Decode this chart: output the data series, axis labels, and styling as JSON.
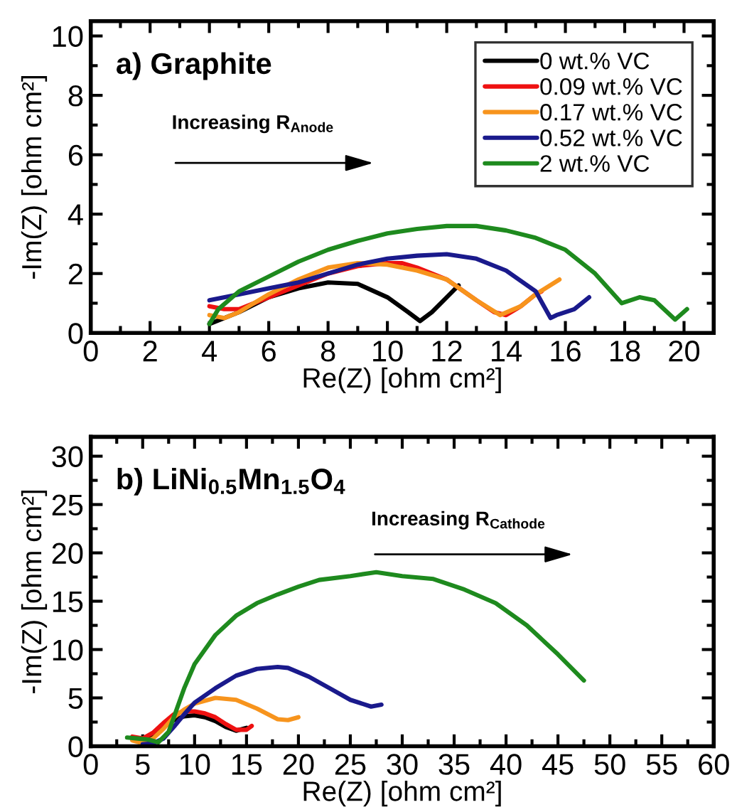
{
  "chart_data": [
    {
      "type": "line",
      "title": "a) Graphite",
      "xlabel": "Re(Z) [ohm cm²]",
      "ylabel": "-Im(Z) [ohm cm²]",
      "annotations": [
        "Increasing R$_{Anode}$"
      ],
      "xlim": [
        0,
        21
      ],
      "ylim": [
        0,
        10.5
      ],
      "xticks": [
        0,
        2,
        4,
        6,
        8,
        10,
        12,
        14,
        16,
        18,
        20
      ],
      "yticks": [
        0,
        2,
        4,
        6,
        8,
        10
      ],
      "grid": false,
      "legend": "top right",
      "line_style": "solid",
      "marker": "none",
      "series": [
        {
          "name": "0 wt.% VC",
          "color": "#000000",
          "x": [
            4,
            5,
            6,
            7,
            8,
            9,
            10,
            10.7,
            11.1,
            11.5,
            12,
            12.4
          ],
          "values": [
            0.3,
            0.7,
            1.2,
            1.5,
            1.7,
            1.65,
            1.2,
            0.7,
            0.4,
            0.7,
            1.2,
            1.6
          ]
        },
        {
          "name": "0.09 wt.% VC",
          "color": "#ee1111",
          "x": [
            4,
            4.5,
            5,
            6,
            7,
            8,
            9,
            10,
            10.5,
            11,
            12,
            13,
            13.6,
            14,
            14.5,
            15,
            15.2
          ],
          "values": [
            0.9,
            0.8,
            0.8,
            1.2,
            1.6,
            2.0,
            2.25,
            2.35,
            2.35,
            2.2,
            1.8,
            1.1,
            0.7,
            0.6,
            0.9,
            1.3,
            1.4
          ]
        },
        {
          "name": "0.17 wt.% VC",
          "color": "#f7941d",
          "x": [
            4,
            4.5,
            5,
            6,
            7,
            8,
            9,
            10,
            11,
            12,
            13,
            13.8,
            14.5,
            15,
            15.8
          ],
          "values": [
            0.6,
            0.5,
            0.7,
            1.3,
            1.8,
            2.2,
            2.35,
            2.3,
            2.1,
            1.8,
            1.1,
            0.6,
            0.9,
            1.3,
            1.8
          ]
        },
        {
          "name": "0.52 wt.% VC",
          "color": "#1a1a8c",
          "x": [
            4,
            5,
            6,
            7,
            8,
            9,
            10,
            11,
            12,
            13,
            14,
            15,
            15.5,
            15.7,
            16.3,
            16.8
          ],
          "values": [
            1.1,
            1.3,
            1.5,
            1.7,
            2.0,
            2.3,
            2.5,
            2.6,
            2.65,
            2.5,
            2.1,
            1.4,
            0.5,
            0.6,
            0.8,
            1.2
          ]
        },
        {
          "name": "2 wt.% VC",
          "color": "#1e8a1e",
          "x": [
            4,
            4.3,
            5,
            6,
            7,
            8,
            9,
            10,
            11,
            12,
            13,
            14,
            15,
            16,
            17,
            17.9,
            18.5,
            19,
            19.7,
            20.1
          ],
          "values": [
            0.3,
            0.8,
            1.4,
            1.9,
            2.4,
            2.8,
            3.1,
            3.35,
            3.5,
            3.6,
            3.6,
            3.45,
            3.2,
            2.8,
            2.0,
            1.0,
            1.2,
            1.1,
            0.45,
            0.8
          ]
        }
      ]
    },
    {
      "type": "line",
      "title": "b) LiNi$_{0.5}$Mn$_{1.5}$O$_{4}$",
      "xlabel": "Re(Z) [ohm cm²]",
      "ylabel": "-Im(Z) [ohm cm²]",
      "annotations": [
        "Increasing R$_{Cathode}$"
      ],
      "xlim": [
        0,
        60
      ],
      "ylim": [
        0,
        32
      ],
      "xticks": [
        0,
        5,
        10,
        15,
        20,
        25,
        30,
        35,
        40,
        45,
        50,
        55,
        60
      ],
      "yticks": [
        0,
        5,
        10,
        15,
        20,
        25,
        30
      ],
      "grid": false,
      "legend": false,
      "line_style": "solid",
      "marker": "none",
      "series": [
        {
          "color": "#000000",
          "x": [
            4,
            5,
            6,
            7,
            8,
            9,
            10,
            11,
            12,
            13,
            14,
            15
          ],
          "values": [
            0.8,
            0.6,
            1.1,
            2,
            2.7,
            3.1,
            3.2,
            3,
            2.6,
            2,
            1.6,
            1.9
          ]
        },
        {
          "color": "#ee1111",
          "x": [
            4,
            5,
            6,
            7,
            8,
            9,
            10,
            11,
            12,
            13,
            14,
            15,
            15.5
          ],
          "values": [
            1,
            0.8,
            1.4,
            2.4,
            3.3,
            3.6,
            3.6,
            3.4,
            3,
            2.3,
            1.7,
            1.7,
            2.1
          ]
        },
        {
          "color": "#f7941d",
          "x": [
            4,
            5,
            6,
            7,
            8,
            9,
            10,
            12,
            14,
            16,
            18,
            19,
            20
          ],
          "values": [
            0.6,
            0.3,
            0.8,
            1.8,
            3,
            3.8,
            4.4,
            5,
            4.8,
            3.9,
            2.8,
            2.7,
            3
          ]
        },
        {
          "color": "#1a1a8c",
          "x": [
            5,
            6,
            7,
            8,
            9,
            10,
            12,
            14,
            16,
            18,
            19,
            21,
            23,
            25,
            27,
            28
          ],
          "values": [
            0.2,
            0.3,
            0.8,
            2,
            3.3,
            4.5,
            6,
            7.3,
            8,
            8.2,
            8.1,
            7.2,
            6,
            4.8,
            4.1,
            4.3
          ]
        },
        {
          "color": "#1e8a1e",
          "x": [
            3.5,
            4.5,
            5.5,
            6.5,
            7.5,
            8,
            9,
            10,
            11,
            12,
            14,
            16,
            18,
            20,
            22,
            25,
            27.5,
            30,
            33,
            36,
            39,
            42,
            45,
            47.5
          ],
          "values": [
            0.9,
            0.8,
            0.7,
            0.4,
            1.5,
            3,
            6,
            8.5,
            10,
            11.5,
            13.5,
            14.8,
            15.7,
            16.5,
            17.2,
            17.6,
            18,
            17.6,
            17.3,
            16.2,
            14.8,
            12.5,
            9.5,
            6.8
          ]
        }
      ]
    }
  ]
}
